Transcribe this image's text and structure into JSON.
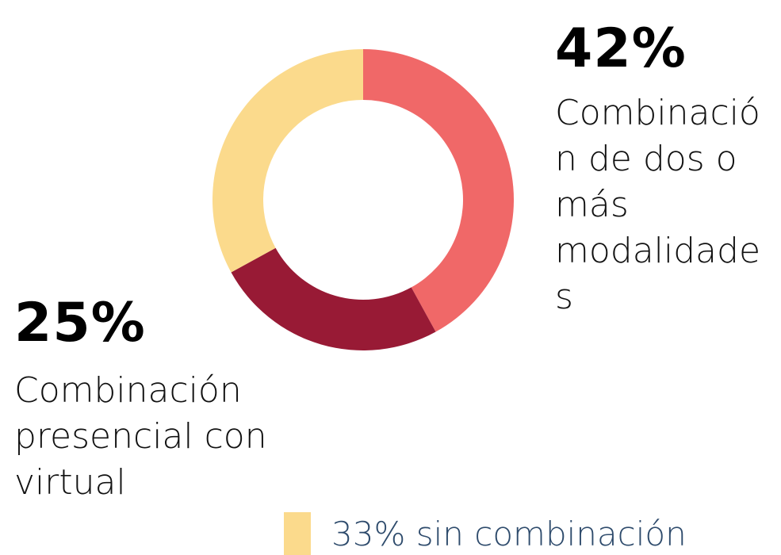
{
  "chart_data": {
    "type": "pie",
    "categories": [
      "Combinación de dos o más modalidades",
      "Combinación presencial con virtual",
      "sin combinación"
    ],
    "values": [
      42,
      25,
      33
    ],
    "value_labels": [
      "42%",
      "25%",
      "33%"
    ],
    "colors": [
      "#f06868",
      "#981a35",
      "#fbda8c"
    ]
  }
}
